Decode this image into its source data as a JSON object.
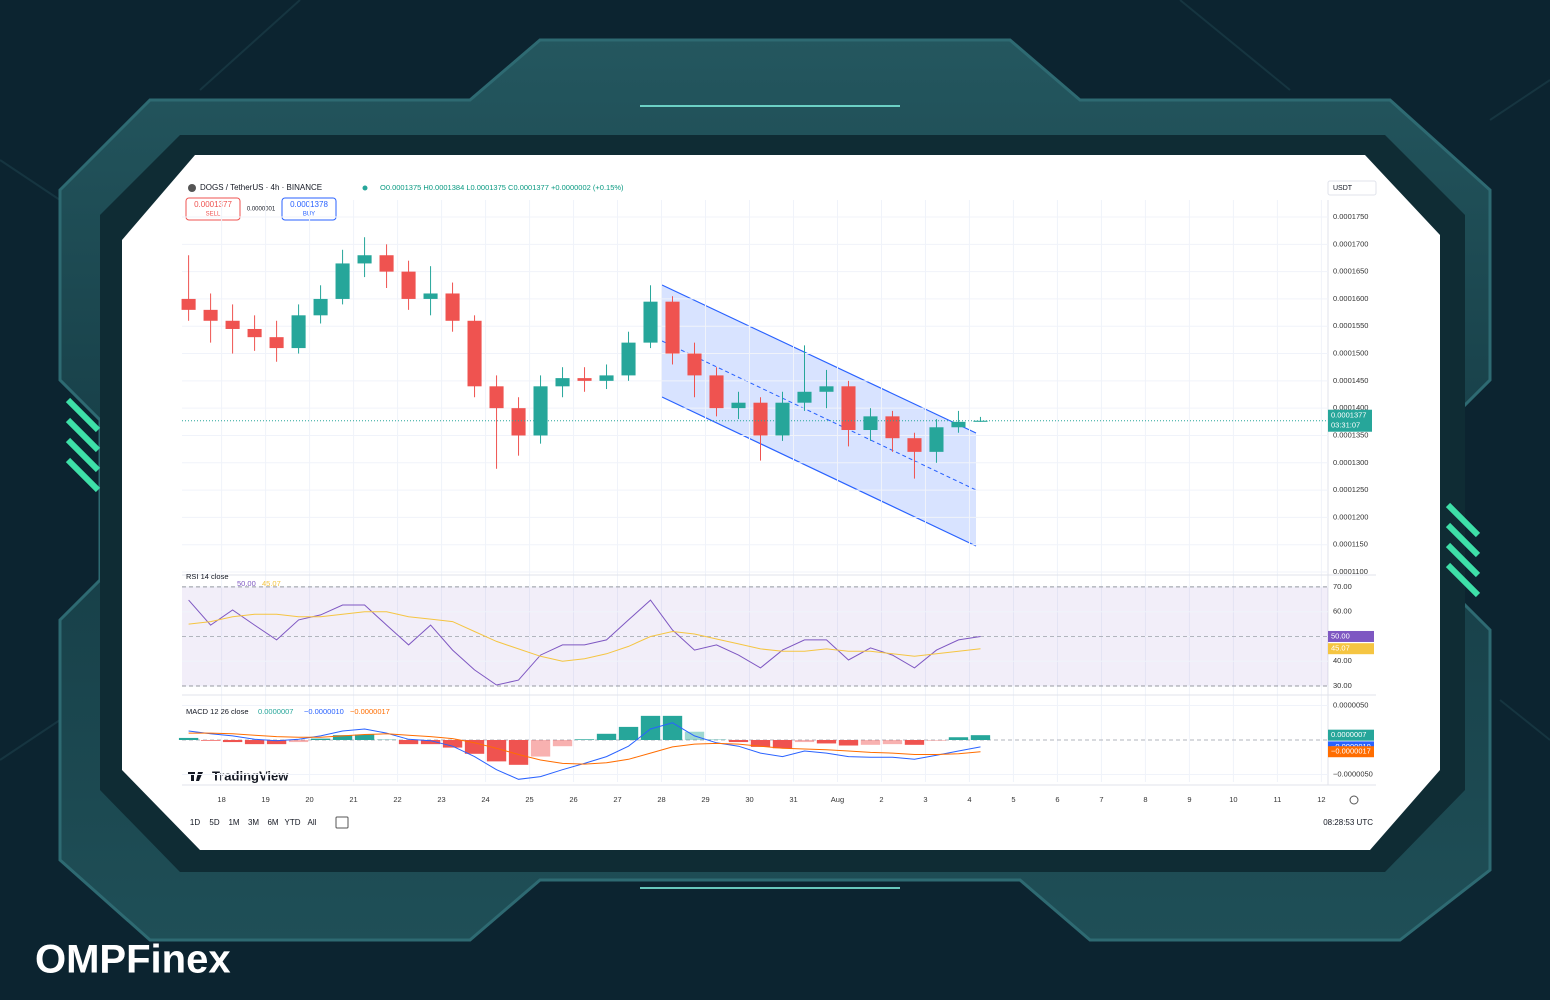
{
  "header": {
    "symbol": "DOGS / TetherUS · 4h · BINANCE",
    "ohlc": "O0.0001375 H0.0001384 L0.0001375 C0.0001377 +0.0000002 (+0.15%)",
    "sell": {
      "price": "0.0001377",
      "label": "SELL"
    },
    "spread": "0.0000001",
    "buy": {
      "price": "0.0001378",
      "label": "BUY"
    },
    "currency": "USDT",
    "last_price": "0.0001377",
    "countdown": "03:31:07"
  },
  "chart_data": [
    {
      "type": "candlestick",
      "up_color": "#26a69a",
      "down_color": "#ef5350",
      "x": [
        -0.75,
        -0.25,
        0.25,
        0.75,
        1.25,
        1.75,
        2.25,
        2.75,
        3.25,
        3.75,
        4.25,
        4.75,
        5.25,
        5.75,
        6.25,
        6.75,
        7.25,
        7.75,
        8.25,
        8.75,
        9.25,
        9.75,
        10.25,
        10.75,
        11.25,
        11.75,
        12.25,
        12.75,
        13.25,
        13.75,
        14.25,
        14.75,
        15.25,
        15.75,
        16.25,
        16.75,
        17.25
      ],
      "open": [
        0.00016,
        0.000158,
        0.000156,
        0.0001545,
        0.000153,
        0.000151,
        0.000157,
        0.00016,
        0.0001665,
        0.000168,
        0.000165,
        0.00016,
        0.000161,
        0.000156,
        0.000144,
        0.00014,
        0.000135,
        0.000144,
        0.0001455,
        0.000145,
        0.000146,
        0.000152,
        0.0001595,
        0.00015,
        0.000146,
        0.00014,
        0.000141,
        0.000135,
        0.000141,
        0.000143,
        0.000144,
        0.000136,
        0.0001385,
        0.0001345,
        0.000132,
        0.0001365,
        0.0001375
      ],
      "high": [
        0.000168,
        0.000161,
        0.000159,
        0.000157,
        0.000156,
        0.000159,
        0.0001625,
        0.000169,
        0.0001713,
        0.00017,
        0.000167,
        0.000166,
        0.000163,
        0.000157,
        0.000146,
        0.000142,
        0.000146,
        0.0001475,
        0.0001475,
        0.000148,
        0.000154,
        0.0001625,
        0.0001605,
        0.000152,
        0.0001475,
        0.000143,
        0.000142,
        0.000143,
        0.0001515,
        0.000147,
        0.000145,
        0.00014,
        0.0001395,
        0.0001355,
        0.000138,
        0.0001395,
        0.0001384
      ],
      "low": [
        0.000156,
        0.000152,
        0.00015,
        0.0001505,
        0.0001485,
        0.00015,
        0.0001555,
        0.000159,
        0.000164,
        0.000162,
        0.000158,
        0.000157,
        0.000154,
        0.000142,
        0.0001289,
        0.0001313,
        0.0001335,
        0.000142,
        0.000143,
        0.0001435,
        0.000145,
        0.000151,
        0.000148,
        0.000142,
        0.0001385,
        0.000138,
        0.0001304,
        0.000134,
        0.0001395,
        0.00014,
        0.000133,
        0.000134,
        0.000132,
        0.0001271,
        0.00013,
        0.0001355,
        0.0001375
      ],
      "close": [
        0.000158,
        0.000156,
        0.0001545,
        0.000153,
        0.000151,
        0.000157,
        0.00016,
        0.0001665,
        0.000168,
        0.000165,
        0.00016,
        0.000161,
        0.000156,
        0.000144,
        0.00014,
        0.000135,
        0.000144,
        0.0001455,
        0.000145,
        0.000146,
        0.000152,
        0.0001595,
        0.00015,
        0.000146,
        0.00014,
        0.000141,
        0.000135,
        0.000141,
        0.000143,
        0.000144,
        0.000136,
        0.0001385,
        0.0001345,
        0.000132,
        0.0001365,
        0.0001375,
        0.0001377
      ],
      "xlim": [
        -0.9,
        25.15
      ],
      "xticks": [
        {
          "value": 0,
          "label": "18"
        },
        {
          "value": 1,
          "label": "19"
        },
        {
          "value": 2,
          "label": "20"
        },
        {
          "value": 3,
          "label": "21"
        },
        {
          "value": 4,
          "label": "22"
        },
        {
          "value": 5,
          "label": "23"
        },
        {
          "value": 6,
          "label": "24"
        },
        {
          "value": 7,
          "label": "25"
        },
        {
          "value": 8,
          "label": "26"
        },
        {
          "value": 9,
          "label": "27"
        },
        {
          "value": 10,
          "label": "28"
        },
        {
          "value": 11,
          "label": "29"
        },
        {
          "value": 12,
          "label": "30"
        },
        {
          "value": 13,
          "label": "31"
        },
        {
          "value": 14,
          "label": "Aug"
        },
        {
          "value": 15,
          "label": "2"
        },
        {
          "value": 16,
          "label": "3"
        },
        {
          "value": 17,
          "label": "4"
        },
        {
          "value": 18,
          "label": "5"
        },
        {
          "value": 19,
          "label": "6"
        },
        {
          "value": 20,
          "label": "7"
        },
        {
          "value": 21,
          "label": "8"
        },
        {
          "value": 22,
          "label": "9"
        },
        {
          "value": 23,
          "label": "10"
        },
        {
          "value": 24,
          "label": "11"
        },
        {
          "value": 25,
          "label": "12"
        }
      ],
      "ylim": [
        0.00011,
        0.0001772
      ],
      "yticks": [
        {
          "value": 0.00011,
          "label": "0.0001100"
        },
        {
          "value": 0.000115,
          "label": "0.0001150"
        },
        {
          "value": 0.00012,
          "label": "0.0001200"
        },
        {
          "value": 0.000125,
          "label": "0.0001250"
        },
        {
          "value": 0.00013,
          "label": "0.0001300"
        },
        {
          "value": 0.000135,
          "label": "0.0001350"
        },
        {
          "value": 0.00014,
          "label": "0.0001400"
        },
        {
          "value": 0.000145,
          "label": "0.0001450"
        },
        {
          "value": 0.00015,
          "label": "0.0001500"
        },
        {
          "value": 0.000155,
          "label": "0.0001550"
        },
        {
          "value": 0.00016,
          "label": "0.0001600"
        },
        {
          "value": 0.000165,
          "label": "0.0001650"
        },
        {
          "value": 0.00017,
          "label": "0.0001700"
        },
        {
          "value": 0.000175,
          "label": "0.0001750"
        }
      ],
      "grid": true
    },
    {
      "type": "line",
      "title": "RSI 14 close",
      "legend_values": [
        "50.00",
        "45.07"
      ],
      "series": [
        {
          "color": "#7e57c2",
          "last_label": "50.00",
          "values": [
            64.7,
            54.6,
            60.7,
            54.6,
            48.6,
            56.7,
            58.7,
            62.7,
            62.7,
            54.6,
            46.6,
            54.6,
            44.5,
            36.5,
            30.4,
            32.4,
            42.5,
            46.6,
            46.6,
            48.6,
            56.7,
            64.7,
            52.6,
            44.5,
            46.6,
            42.5,
            37.3,
            44.5,
            48.6,
            48.6,
            40.5,
            45.4,
            42.5,
            37.3,
            44.5,
            48.6,
            50
          ]
        },
        {
          "color": "#f5c542",
          "last_label": "45.07",
          "values": [
            55,
            56,
            58,
            59,
            59,
            58,
            58,
            59,
            60,
            60,
            58,
            57,
            56,
            52,
            48,
            45,
            42,
            40,
            41,
            43,
            46,
            50,
            52,
            51,
            49,
            47,
            45,
            44,
            44,
            45,
            44,
            44,
            43,
            42,
            43,
            44,
            45.07
          ]
        }
      ],
      "ylim": [
        28.4,
        73.6
      ],
      "band": [
        30,
        70
      ],
      "midline": 50,
      "yticks": [
        {
          "value": 30,
          "label": "30.00"
        },
        {
          "value": 40,
          "label": "40.00"
        },
        {
          "value": 50,
          "label": "50.00"
        },
        {
          "value": 60,
          "label": "60.00"
        },
        {
          "value": 70,
          "label": "70.00"
        }
      ]
    },
    {
      "type": "macd",
      "title": "MACD 12 26 close",
      "legend_values": [
        "0.0000007",
        "−0.0000010",
        "−0.0000017"
      ],
      "legend_colors": [
        "#26a69a",
        "#2962ff",
        "#ff6d00"
      ],
      "histogram": {
        "up_color": "#26a69a",
        "down_color": "#ef5350",
        "last_label": "0.0000007",
        "values": [
          3e-07,
          -1e-07,
          -3e-07,
          -6e-07,
          -6e-07,
          -3e-07,
          2e-07,
          7e-07,
          8e-07,
          1e-07,
          -6e-07,
          -6e-07,
          -1.1e-06,
          -2e-06,
          -3.1e-06,
          -3.6e-06,
          -2.4e-06,
          -9e-07,
          1e-07,
          9e-07,
          1.9e-06,
          3.5e-06,
          3.5e-06,
          1.2e-06,
          1e-07,
          -3e-07,
          -1e-06,
          -1.2e-06,
          -3e-07,
          -5e-07,
          -8e-07,
          -7e-07,
          -6e-07,
          -7e-07,
          -1e-07,
          4e-07,
          7e-07
        ]
      },
      "series": [
        {
          "color": "#2962ff",
          "last_label": "−0.0000010",
          "values": [
            1.3e-06,
            9e-07,
            6e-07,
            1e-07,
            -1e-07,
            1e-07,
            6e-07,
            1.3e-06,
            1.6e-06,
            1e-06,
            1e-07,
            -1e-07,
            -9e-07,
            -2.4e-06,
            -4.3e-06,
            -5.7e-06,
            -5.3e-06,
            -4.3e-06,
            -3.4e-06,
            -2.4e-06,
            -9e-07,
            1.6e-06,
            2.5e-06,
            6e-07,
            -4e-07,
            -9e-07,
            -1.9e-06,
            -2.4e-06,
            -1.6e-06,
            -1.9e-06,
            -2.4e-06,
            -2.5e-06,
            -2.5e-06,
            -2.8e-06,
            -2.2e-06,
            -1.6e-06,
            -1e-06
          ]
        },
        {
          "color": "#ff6d00",
          "last_label": "−0.0000017",
          "values": [
            1e-06,
            1e-06,
            9e-07,
            7e-07,
            5e-07,
            4e-07,
            4e-07,
            6e-07,
            8e-07,
            9e-07,
            7e-07,
            5e-07,
            2e-07,
            -4e-07,
            -1.2e-06,
            -2.1e-06,
            -2.9e-06,
            -3.4e-06,
            -3.5e-06,
            -3.3e-06,
            -2.8e-06,
            -1.9e-06,
            -1e-06,
            -6e-07,
            -5e-07,
            -6e-07,
            -9e-07,
            -1.2e-06,
            -1.3e-06,
            -1.4e-06,
            -1.6e-06,
            -1.8e-06,
            -1.9e-06,
            -2.1e-06,
            -2.1e-06,
            -2e-06,
            -1.7e-06
          ]
        }
      ],
      "ylim": [
        -5.8e-06,
        5.8e-06
      ],
      "yticks": [
        {
          "value": -5e-06,
          "label": "−0.0000050"
        },
        {
          "value": 5e-06,
          "label": "0.0000050"
        }
      ]
    }
  ],
  "range_buttons": [
    "1D",
    "5D",
    "1M",
    "3M",
    "6M",
    "YTD",
    "All"
  ],
  "clock": "08:28:53 UTC",
  "watermark": "TradingView",
  "brand": "OMPFinex"
}
